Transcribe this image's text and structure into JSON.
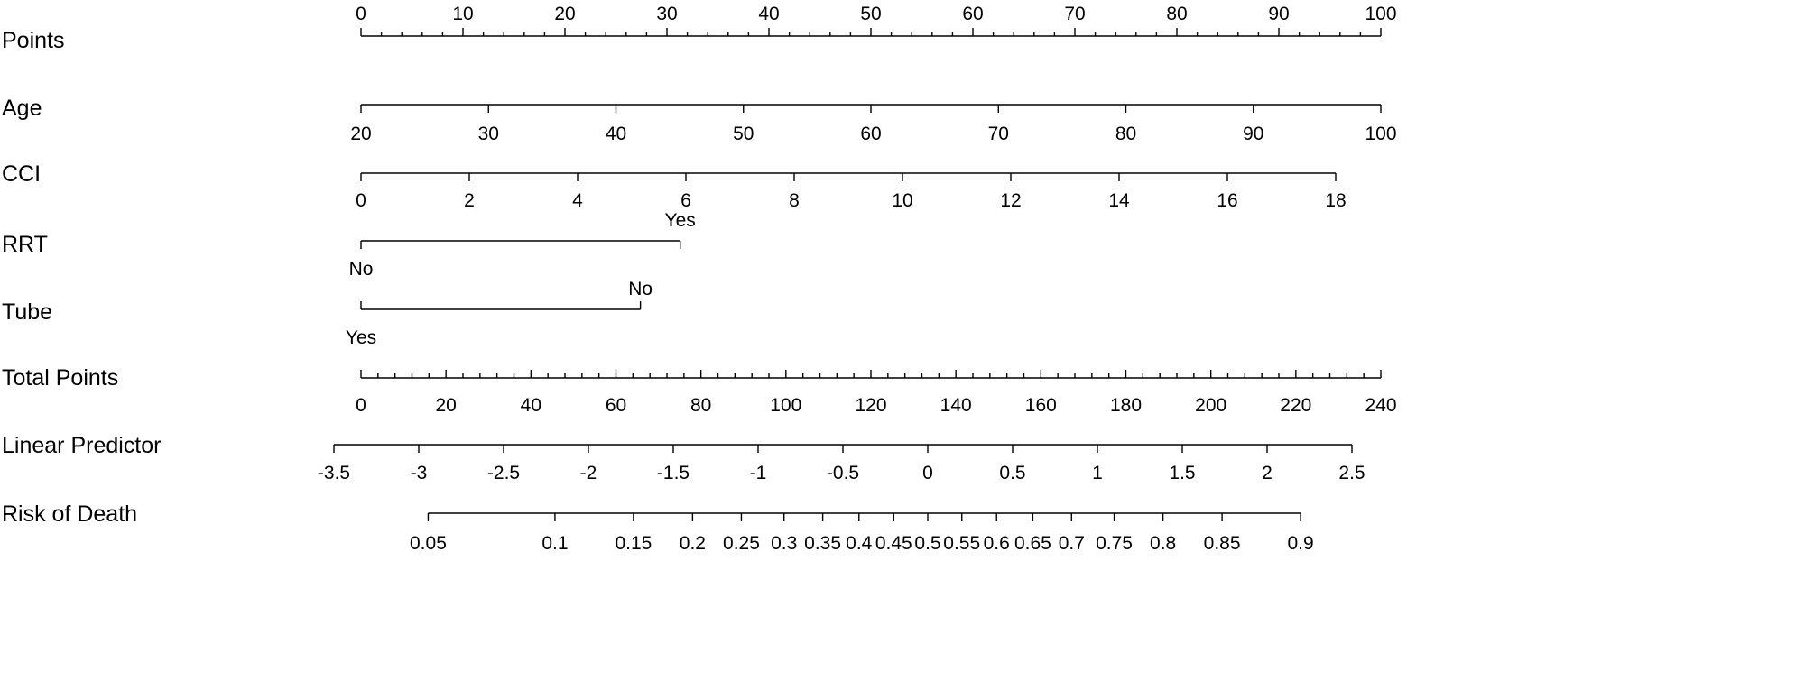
{
  "chart_data": {
    "type": "nomogram",
    "rows": [
      {
        "name": "Points",
        "kind": "linear",
        "start": 0,
        "end": 100,
        "minor_step": 2,
        "major_step": 10,
        "labels": [
          "0",
          "10",
          "20",
          "30",
          "40",
          "50",
          "60",
          "70",
          "80",
          "90",
          "100"
        ],
        "label_values": [
          0,
          10,
          20,
          30,
          40,
          50,
          60,
          70,
          80,
          90,
          100
        ]
      },
      {
        "name": "Age",
        "kind": "linear",
        "start": 20,
        "end": 100,
        "major_step": 10,
        "labels": [
          "20",
          "30",
          "40",
          "50",
          "60",
          "70",
          "80",
          "90",
          "100"
        ],
        "label_values": [
          20,
          30,
          40,
          50,
          60,
          70,
          80,
          90,
          100
        ]
      },
      {
        "name": "CCI",
        "kind": "linear",
        "start": 0,
        "end": 18,
        "major_step": 2,
        "labels": [
          "0",
          "2",
          "4",
          "6",
          "8",
          "10",
          "12",
          "14",
          "16",
          "18"
        ],
        "label_values": [
          0,
          2,
          4,
          6,
          8,
          10,
          12,
          14,
          16,
          18
        ]
      },
      {
        "name": "RRT",
        "kind": "categorical",
        "categories": [
          {
            "label": "No",
            "points": 0
          },
          {
            "label": "Yes",
            "points": 31.3
          }
        ]
      },
      {
        "name": "Tube",
        "kind": "categorical",
        "categories": [
          {
            "label": "Yes",
            "points": 0
          },
          {
            "label": "No",
            "points": 27.4
          }
        ]
      },
      {
        "name": "Total Points",
        "kind": "linear",
        "start": 0,
        "end": 240,
        "minor_step": 4,
        "major_step": 20,
        "labels": [
          "0",
          "20",
          "40",
          "60",
          "80",
          "100",
          "120",
          "140",
          "160",
          "180",
          "200",
          "220",
          "240"
        ],
        "label_values": [
          0,
          20,
          40,
          60,
          80,
          100,
          120,
          140,
          160,
          180,
          200,
          220,
          240
        ]
      },
      {
        "name": "Linear Predictor",
        "kind": "linear",
        "start": -3.5,
        "end": 2.5,
        "major_step": 0.5,
        "labels": [
          "-3.5",
          "-3",
          "-2.5",
          "-2",
          "-1.5",
          "-1",
          "-0.5",
          "0",
          "0.5",
          "1",
          "1.5",
          "2",
          "2.5"
        ],
        "label_values": [
          -3.5,
          -3,
          -2.5,
          -2,
          -1.5,
          -1,
          -0.5,
          0,
          0.5,
          1,
          1.5,
          2,
          2.5
        ]
      },
      {
        "name": "Risk of Death",
        "kind": "logistic",
        "labels": [
          "0.05",
          "0.1",
          "0.15",
          "0.2",
          "0.25",
          "0.3",
          "0.35",
          "0.4",
          "0.45",
          "0.5",
          "0.55",
          "0.6",
          "0.65",
          "0.7",
          "0.75",
          "0.8",
          "0.85",
          "0.9"
        ],
        "label_values": [
          0.05,
          0.1,
          0.15,
          0.2,
          0.25,
          0.3,
          0.35,
          0.4,
          0.45,
          0.5,
          0.55,
          0.6,
          0.65,
          0.7,
          0.75,
          0.8,
          0.85,
          0.9
        ]
      }
    ]
  }
}
